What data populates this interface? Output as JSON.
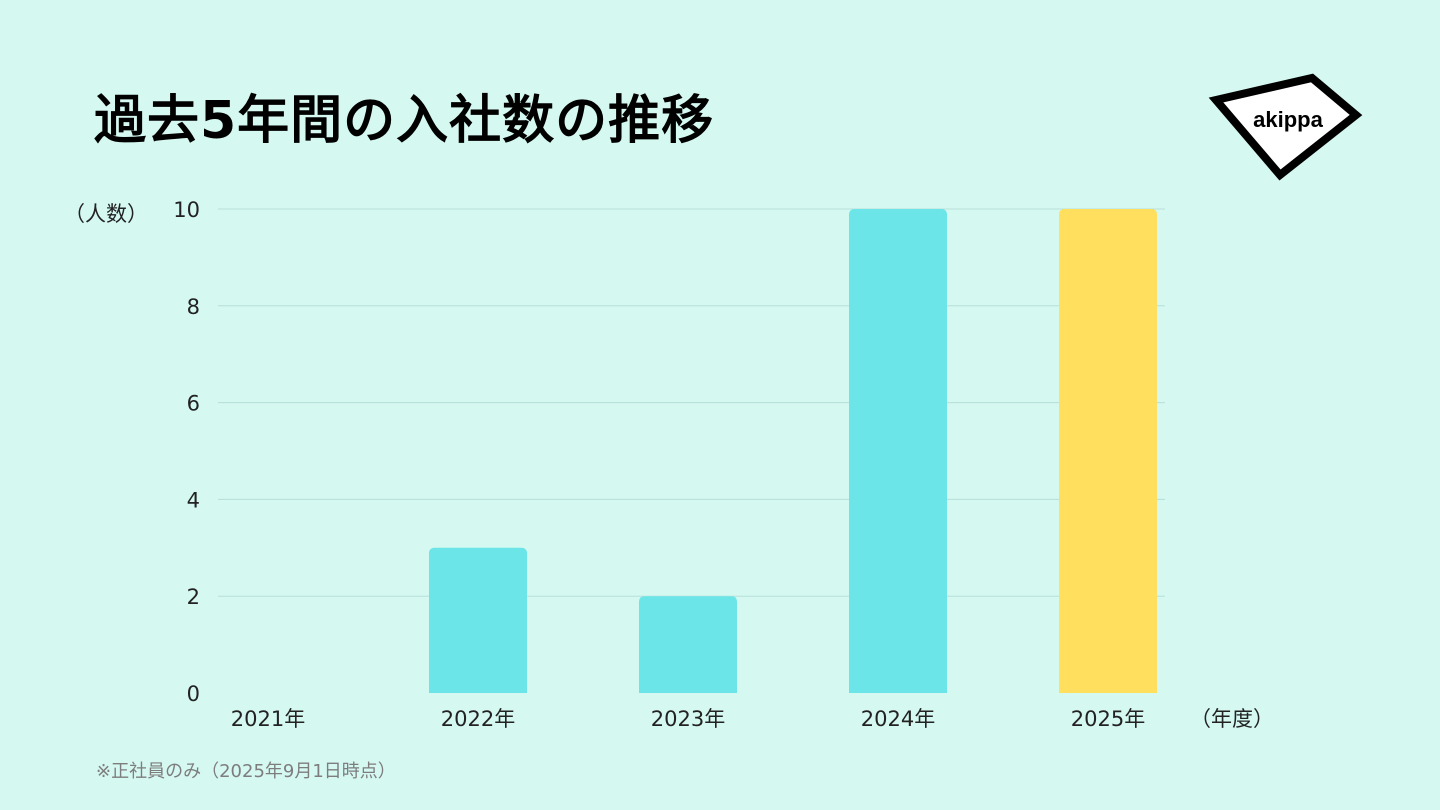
{
  "title": "過去5年間の入社数の推移",
  "logo": {
    "text": "akippa"
  },
  "note": "※正社員のみ（2025年9月1日時点）",
  "colors": {
    "background": "#d5f8f1",
    "bar": "#6be5e8",
    "highlight": "#ffdf5d",
    "grid": "#b6dfd9"
  },
  "chart_data": {
    "type": "bar",
    "categories": [
      "2021年",
      "2022年",
      "2023年",
      "2024年",
      "2025年"
    ],
    "values": [
      0,
      3,
      2,
      10,
      10
    ],
    "highlight_index": 4,
    "ylabel": "（人数）",
    "xlabel": "（年度）",
    "ylim": [
      0,
      10
    ],
    "yticks": [
      0,
      2,
      4,
      6,
      8,
      10
    ],
    "grid": true
  }
}
